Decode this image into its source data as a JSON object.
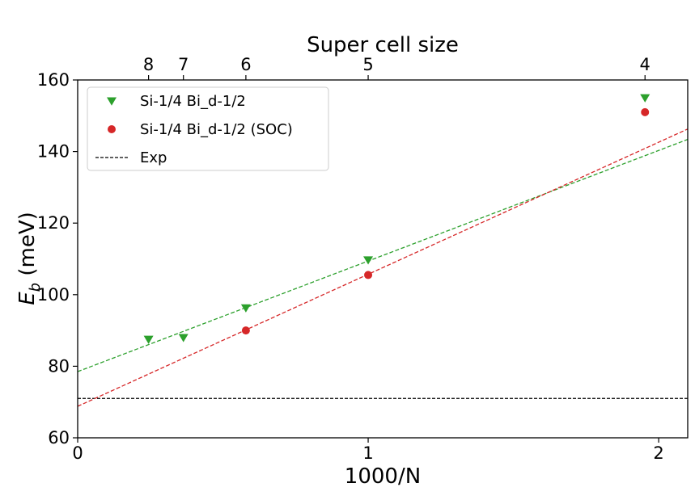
{
  "chart_data": {
    "type": "scatter",
    "title": "",
    "xlabel": "1000/N",
    "ylabel_main": "E",
    "ylabel_sub": "b",
    "ylabel_unit": " (meV)",
    "top_xlabel": "Super cell size",
    "xlim": [
      0,
      2.1
    ],
    "ylim": [
      60,
      160
    ],
    "xticks": [
      0,
      1,
      2
    ],
    "xtick_labels": [
      "0",
      "1",
      "2"
    ],
    "yticks": [
      60,
      80,
      100,
      120,
      140,
      160
    ],
    "ytick_labels": [
      "60",
      "80",
      "100",
      "120",
      "140",
      "160"
    ],
    "top_ticks": [
      {
        "label": "8",
        "x": 0.244
      },
      {
        "label": "7",
        "x": 0.364
      },
      {
        "label": "6",
        "x": 0.579
      },
      {
        "label": "5",
        "x": 1.0
      },
      {
        "label": "4",
        "x": 1.953
      }
    ],
    "grid": false,
    "legend_position": "upper-left",
    "series": [
      {
        "name": "Si-1/4 Bi_d-1/2",
        "marker": "triangle-down",
        "color": "#2ca02c",
        "points": [
          {
            "x": 0.244,
            "y": 87.5
          },
          {
            "x": 0.364,
            "y": 88.0
          },
          {
            "x": 0.579,
            "y": 96.3
          },
          {
            "x": 1.0,
            "y": 109.7
          },
          {
            "x": 1.953,
            "y": 155.0
          }
        ],
        "fit": {
          "intercept": 78.5,
          "slope": 30.9
        }
      },
      {
        "name": "Si-1/4 Bi_d-1/2 (SOC)",
        "marker": "circle",
        "color": "#d62728",
        "points": [
          {
            "x": 0.579,
            "y": 90.0
          },
          {
            "x": 1.0,
            "y": 105.5
          },
          {
            "x": 1.953,
            "y": 151.0
          }
        ],
        "fit": {
          "intercept": 68.8,
          "slope": 36.9
        }
      }
    ],
    "reference_lines": [
      {
        "name": "Exp",
        "y": 71.0,
        "color": "#000000",
        "style": "dashed"
      }
    ]
  }
}
